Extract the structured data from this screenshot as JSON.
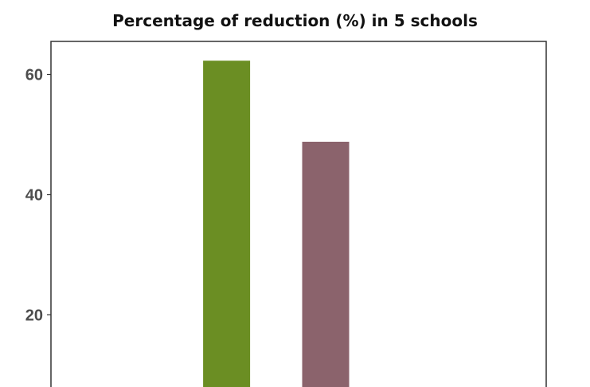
{
  "chart_data": {
    "type": "bar",
    "title": "Percentage of reduction (%) in 5 schools",
    "categories": [
      "",
      "",
      "",
      "",
      ""
    ],
    "values": [
      null,
      62.3,
      48.8,
      null,
      null
    ],
    "colors": [
      null,
      "#6b8e23",
      "#8b636c",
      null,
      null
    ],
    "yticks": [
      20,
      40,
      60
    ],
    "ylim": [
      8,
      65.5
    ],
    "xlabel": "",
    "ylabel": "",
    "grid": false,
    "legend": "none",
    "frame_color": "#333333"
  }
}
